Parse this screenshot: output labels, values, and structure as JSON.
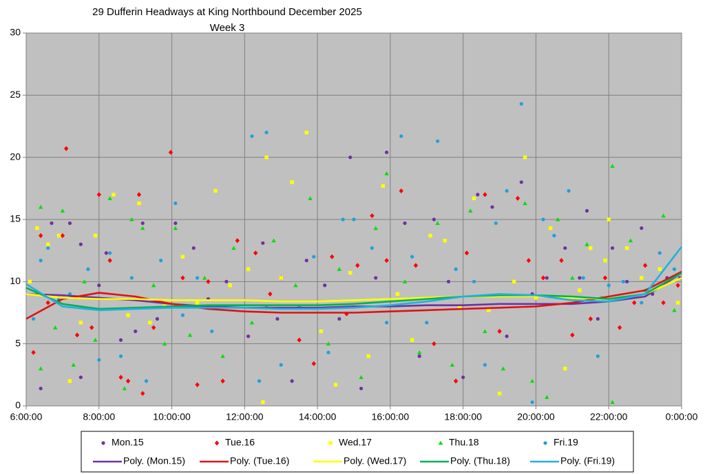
{
  "chart_data": {
    "type": "scatter",
    "title": "29 Dufferin Headways at King Northbound December 2025",
    "subtitle": "Week 3",
    "xlim": [
      6,
      24
    ],
    "xticks": [
      {
        "value": 6,
        "label": "6:00:00"
      },
      {
        "value": 8,
        "label": "8:00:00"
      },
      {
        "value": 10,
        "label": "10:00:00"
      },
      {
        "value": 12,
        "label": "12:00:00"
      },
      {
        "value": 14,
        "label": "14:00:00"
      },
      {
        "value": 16,
        "label": "16:00:00"
      },
      {
        "value": 18,
        "label": "18:00:00"
      },
      {
        "value": 20,
        "label": "20:00:00"
      },
      {
        "value": 22,
        "label": "22:00:00"
      },
      {
        "value": 24,
        "label": "0:00:00"
      }
    ],
    "ylim": [
      0,
      30
    ],
    "yticks": [
      0,
      5,
      10,
      15,
      20,
      25,
      30
    ],
    "grid": true,
    "legend": "bottom",
    "series": [
      {
        "name": "Mon.15",
        "color": "#7030a0",
        "marker": "circle",
        "x": [
          6.4,
          6.7,
          6.9,
          7.2,
          7.5,
          7.5,
          8.0,
          8.2,
          8.6,
          9.0,
          9.2,
          9.6,
          10.1,
          10.6,
          11.0,
          11.5,
          12.1,
          12.5,
          12.9,
          13.3,
          13.7,
          14.2,
          14.6,
          14.9,
          15.2,
          15.6,
          15.9,
          16.4,
          16.8,
          17.2,
          17.6,
          18.0,
          18.4,
          18.8,
          19.2,
          19.6,
          19.9,
          20.3,
          20.8,
          21.2,
          21.4,
          21.7,
          22.1,
          22.5,
          22.9,
          23.2,
          23.6,
          23.95
        ],
        "values": [
          1.4,
          14.7,
          8.5,
          14.7,
          13,
          2.3,
          9.7,
          12.3,
          5.3,
          6,
          14.7,
          7,
          14.7,
          12.7,
          8.6,
          10,
          5.6,
          13.1,
          7,
          2,
          11.7,
          9.7,
          7,
          20,
          1.4,
          10.3,
          20.4,
          14.7,
          4,
          15,
          10,
          2.3,
          17,
          16,
          5.6,
          18,
          9,
          10.3,
          12.7,
          10.3,
          15.7,
          7,
          12.7,
          10,
          14.3,
          9,
          10.3,
          10.3
        ]
      },
      {
        "name": "Tue.16",
        "color": "#ff0000",
        "marker": "diamond",
        "x": [
          6.2,
          6.4,
          6.6,
          7.0,
          7.1,
          7.4,
          7.8,
          8.0,
          8.3,
          8.6,
          8.8,
          9.1,
          9.2,
          9.5,
          9.97,
          10.3,
          10.7,
          11.0,
          11.4,
          11.8,
          12.3,
          12.7,
          13.0,
          13.5,
          13.9,
          14.4,
          14.8,
          15.1,
          15.5,
          15.9,
          16.3,
          16.7,
          17.2,
          17.8,
          18.1,
          18.6,
          19.0,
          19.5,
          19.8,
          20.2,
          20.7,
          21.0,
          21.5,
          21.9,
          22.3,
          22.7,
          23.0,
          23.5,
          23.9
        ],
        "values": [
          4.3,
          13.7,
          8.3,
          13.7,
          20.7,
          5.7,
          6.3,
          17,
          11.7,
          2.3,
          2,
          17,
          1,
          6.3,
          20.4,
          10.3,
          1.7,
          10,
          2,
          13.3,
          12.3,
          9,
          10.3,
          5.3,
          3.4,
          12,
          7.4,
          11.3,
          15.3,
          11.7,
          17.3,
          11.3,
          5,
          2,
          12.3,
          17,
          6,
          16.7,
          11.7,
          10.3,
          11.7,
          5.7,
          7,
          10.3,
          6.3,
          8.3,
          11.3,
          8.3,
          9.7
        ]
      },
      {
        "name": "Wed.17",
        "color": "#ffff00",
        "marker": "square",
        "x": [
          6.1,
          6.3,
          6.6,
          6.9,
          7.2,
          7.5,
          7.9,
          8.4,
          8.8,
          9.1,
          9.4,
          9.8,
          10.3,
          10.7,
          11.2,
          11.6,
          12.1,
          12.5,
          12.6,
          13.0,
          13.3,
          13.7,
          14.1,
          14.5,
          14.9,
          15.4,
          15.8,
          16.2,
          16.6,
          17.1,
          17.5,
          17.9,
          18.3,
          18.7,
          19.0,
          19.4,
          19.7,
          20.0,
          20.4,
          20.8,
          21.2,
          21.5,
          21.9,
          22.0,
          22.5,
          22.9,
          23.4,
          23.9
        ],
        "values": [
          10,
          14.3,
          13,
          13.7,
          2,
          6.7,
          13.7,
          17,
          7.3,
          16.3,
          6.7,
          8,
          12,
          8.3,
          17.3,
          9.7,
          11,
          0.3,
          20,
          10.3,
          18,
          22,
          6,
          1.7,
          10.7,
          4,
          17.7,
          9,
          5.3,
          13.7,
          13.3,
          8,
          16.7,
          7.7,
          1,
          10,
          20,
          8.7,
          14.3,
          3,
          9.3,
          12.7,
          11.7,
          15,
          12.7,
          10.3,
          11,
          8.3
        ]
      },
      {
        "name": "Thu.18",
        "color": "#00e000",
        "marker": "triangle",
        "x": [
          6.4,
          6.4,
          6.8,
          7.0,
          7.3,
          7.6,
          7.9,
          8.3,
          8.7,
          8.9,
          9.2,
          9.5,
          9.8,
          10.1,
          10.5,
          10.9,
          11.4,
          11.7,
          12.2,
          12.6,
          12.8,
          13.4,
          13.8,
          14.3,
          14.6,
          15.2,
          15.6,
          15.9,
          16.4,
          16.8,
          17.3,
          17.7,
          18.2,
          18.6,
          19.1,
          19.7,
          19.9,
          20.3,
          20.6,
          21.0,
          21.4,
          21.8,
          22.1,
          22.1,
          22.6,
          23.0,
          23.5,
          23.8
        ],
        "values": [
          16,
          3,
          6.3,
          15.7,
          3.3,
          10,
          5.3,
          16.7,
          1.4,
          15,
          14.3,
          9.7,
          5,
          14.3,
          5.7,
          10.3,
          4,
          12.7,
          6.7,
          8,
          13.3,
          9.7,
          16.7,
          5,
          11,
          2.3,
          14.3,
          18.7,
          10,
          4.3,
          14.7,
          3.3,
          15.7,
          6,
          3,
          16.3,
          2,
          0.7,
          15,
          10.3,
          13,
          8.7,
          19.3,
          0.3,
          13.3,
          9.3,
          15.3,
          7.7
        ]
      },
      {
        "name": "Fri.19",
        "color": "#1ea0e0",
        "marker": "circle",
        "x": [
          6.2,
          6.4,
          6.6,
          6.9,
          7.2,
          7.7,
          8.0,
          8.3,
          8.6,
          8.9,
          9.3,
          9.7,
          10.1,
          10.3,
          10.7,
          11.1,
          11.5,
          12.2,
          12.4,
          12.6,
          13.0,
          13.5,
          13.9,
          14.3,
          14.7,
          15.0,
          15.5,
          15.9,
          16.3,
          16.6,
          17.0,
          17.3,
          17.8,
          18.3,
          18.6,
          18.9,
          19.2,
          19.6,
          19.9,
          20.2,
          20.5,
          20.9,
          21.3,
          21.7,
          22.0,
          22.4,
          22.9,
          23.4,
          23.8
        ],
        "values": [
          7,
          11.7,
          12.7,
          8.7,
          9,
          11,
          3.7,
          12.3,
          4,
          10.3,
          2,
          11.7,
          16.3,
          7.3,
          10.3,
          6,
          8,
          21.7,
          2,
          22,
          3.3,
          8,
          12,
          4.3,
          15,
          15,
          12.7,
          6.7,
          21.7,
          12,
          6.7,
          21.3,
          11,
          10,
          3.3,
          14.7,
          17.3,
          24.3,
          0.3,
          15,
          13.7,
          17.3,
          10.3,
          4,
          9.7,
          10,
          8.3,
          12.3,
          11
        ]
      },
      {
        "name": "Poly. (Mon.15)",
        "color": "#7030a0",
        "type": "line",
        "x": [
          6,
          7,
          8,
          9,
          10,
          11,
          12,
          13,
          14,
          15,
          16,
          17,
          18,
          19,
          20,
          21,
          22,
          23,
          24
        ],
        "values": [
          9.0,
          8.9,
          8.7,
          8.5,
          8.2,
          8.0,
          7.9,
          7.9,
          7.9,
          8.0,
          8.0,
          8.1,
          8.1,
          8.2,
          8.2,
          8.2,
          8.4,
          8.8,
          10.7
        ]
      },
      {
        "name": "Poly. (Tue.16)",
        "color": "#e01010",
        "type": "line",
        "x": [
          6,
          7,
          8,
          9,
          10,
          11,
          12,
          13,
          14,
          15,
          16,
          17,
          18,
          19,
          20,
          21,
          22,
          23,
          24
        ],
        "values": [
          7.0,
          8.6,
          9.1,
          8.8,
          8.2,
          7.8,
          7.6,
          7.5,
          7.5,
          7.5,
          7.6,
          7.7,
          7.8,
          7.9,
          8.0,
          8.3,
          8.8,
          9.3,
          10.8
        ]
      },
      {
        "name": "Poly. (Wed.17)",
        "color": "#ffff00",
        "type": "line",
        "x": [
          6,
          7,
          8,
          9,
          10,
          11,
          12,
          13,
          14,
          15,
          16,
          17,
          18,
          19,
          20,
          21,
          22,
          23,
          24
        ],
        "values": [
          9.0,
          8.7,
          8.6,
          8.6,
          8.5,
          8.5,
          8.5,
          8.4,
          8.4,
          8.5,
          8.6,
          8.7,
          8.8,
          8.8,
          8.8,
          8.7,
          8.6,
          9.0,
          10.3
        ]
      },
      {
        "name": "Poly. (Thu.18)",
        "color": "#00b050",
        "type": "line",
        "x": [
          6,
          7,
          8,
          9,
          10,
          11,
          12,
          13,
          14,
          15,
          16,
          17,
          18,
          19,
          20,
          21,
          22,
          23,
          24
        ],
        "values": [
          9.5,
          8.2,
          7.8,
          7.9,
          8.0,
          8.1,
          8.1,
          8.1,
          8.1,
          8.2,
          8.4,
          8.6,
          8.8,
          8.9,
          8.9,
          8.8,
          8.6,
          9.0,
          10.7
        ]
      },
      {
        "name": "Poly. (Fri.19)",
        "color": "#20b0e0",
        "type": "line",
        "x": [
          6,
          7,
          8,
          9,
          10,
          11,
          12,
          13,
          14,
          15,
          16,
          17,
          18,
          19,
          20,
          21,
          22,
          23,
          24
        ],
        "values": [
          9.8,
          8.0,
          7.7,
          7.8,
          7.9,
          7.9,
          7.9,
          7.8,
          7.8,
          7.9,
          8.1,
          8.4,
          8.8,
          9.0,
          8.9,
          8.5,
          8.4,
          9.0,
          12.8
        ]
      }
    ]
  }
}
